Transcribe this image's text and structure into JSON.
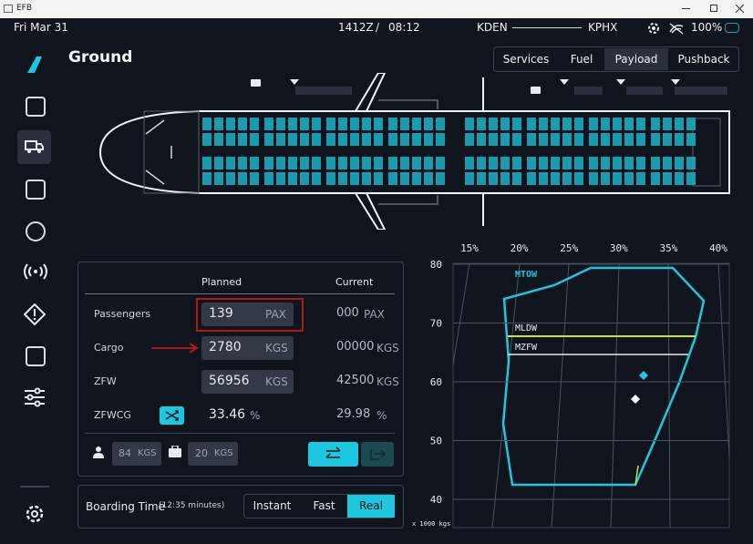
{
  "window": {
    "title": "EFB"
  },
  "status_bar": {
    "date": "Fri Mar 31",
    "zulu_time": "1412Z",
    "separator": "/",
    "local_time": "08:12",
    "origin": "KDEN",
    "destination": "KPHX",
    "battery": "100%"
  },
  "page_title": "Ground",
  "tabs": [
    {
      "label": "Services",
      "active": false
    },
    {
      "label": "Fuel",
      "active": false
    },
    {
      "label": "Payload",
      "active": true
    },
    {
      "label": "Pushback",
      "active": false
    }
  ],
  "payload_table": {
    "headers": {
      "planned": "Planned",
      "current": "Current"
    },
    "rows": [
      {
        "label": "Passengers",
        "planned": "139",
        "planned_unit": "PAX",
        "current": "000",
        "current_unit": "PAX"
      },
      {
        "label": "Cargo",
        "planned": "2780",
        "planned_unit": "KGS",
        "current": "00000",
        "current_unit": "KGS"
      },
      {
        "label": "ZFW",
        "planned": "56956",
        "planned_unit": "KGS",
        "current": "42500",
        "current_unit": "KGS"
      },
      {
        "label": "ZFWCG",
        "planned": "33.46",
        "planned_unit": "%",
        "current": "29.98",
        "current_unit": "%"
      }
    ],
    "pax_weight": {
      "value": "84",
      "unit": "KGS"
    },
    "bag_weight": {
      "value": "20",
      "unit": "KGS"
    }
  },
  "boarding": {
    "label": "Boarding Time",
    "note": "(12:35 minutes)",
    "options": [
      {
        "label": "Instant",
        "active": false
      },
      {
        "label": "Fast",
        "active": false
      },
      {
        "label": "Real",
        "active": true
      }
    ]
  },
  "cg_chart": {
    "x_labels": [
      "15%",
      "20%",
      "25%",
      "30%",
      "35%",
      "40%"
    ],
    "y_labels": [
      "80",
      "70",
      "60",
      "50",
      "40"
    ],
    "unit_note": "x 1000 kgs",
    "limits": {
      "mtow": "MTOW",
      "mldw": "MLDW",
      "mzfw": "MZFW"
    }
  }
}
